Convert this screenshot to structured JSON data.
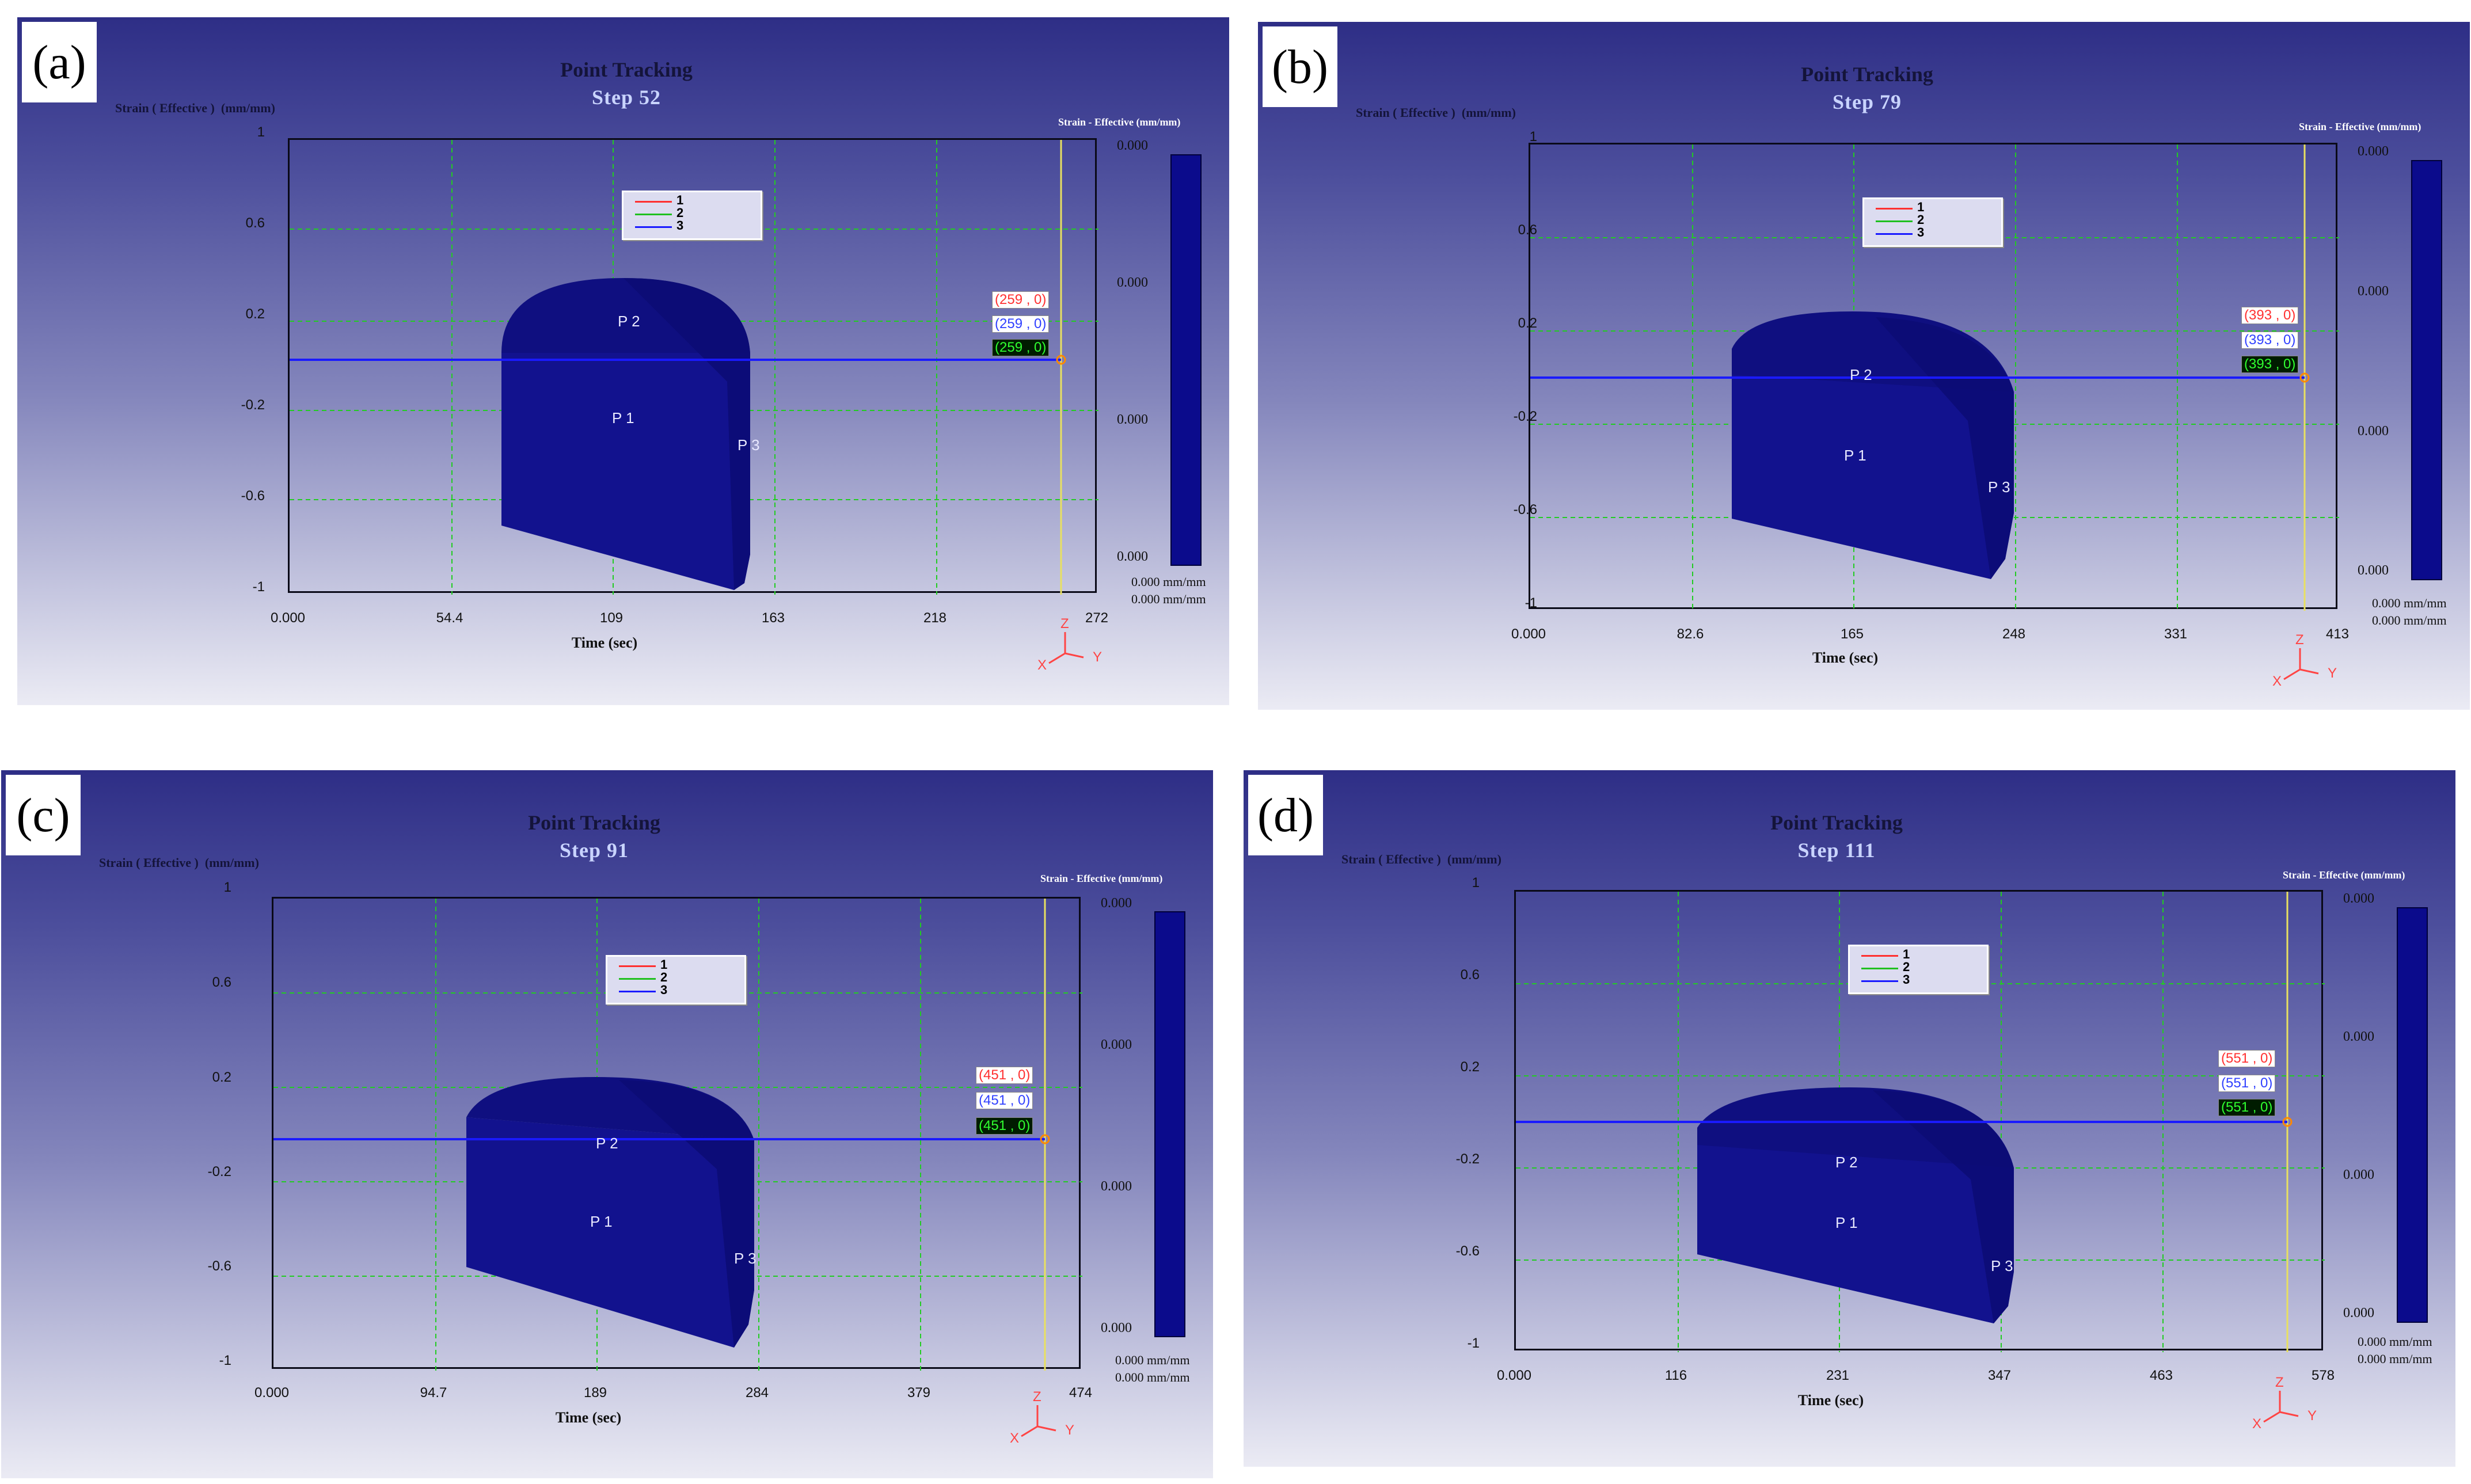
{
  "figure": {
    "panels": [
      {
        "letter": "(a)",
        "title": "Point Tracking",
        "step": "Step   52",
        "y_axis_label": "Strain ( Effective )  (mm/mm)",
        "colorbar_title": "Strain - Effective (mm/mm)",
        "y_ticks": [
          "1",
          "0.6",
          "0.2",
          "-0.2",
          "-0.6",
          "-1"
        ],
        "x_ticks": [
          "0.000",
          "54.4",
          "109",
          "163",
          "218",
          "272"
        ],
        "x_axis_label": "Time (sec)",
        "legend": [
          "1",
          "2",
          "3"
        ],
        "value_tags": [
          "(259 , 0)",
          "(259 , 0)",
          "(259 , 0)"
        ],
        "point_labels": [
          "P 2",
          "P 1",
          "P 3"
        ],
        "colorbar_values": [
          "0.000",
          "0.000",
          "0.000",
          "0.000"
        ],
        "colorbar_units": [
          "0.000 mm/mm",
          "0.000 mm/mm"
        ],
        "axis_indicator": {
          "z": "Z",
          "x": "X",
          "y": "Y"
        }
      },
      {
        "letter": "(b)",
        "title": "Point Tracking",
        "step": "Step   79",
        "y_axis_label": "Strain ( Effective )  (mm/mm)",
        "colorbar_title": "Strain - Effective (mm/mm)",
        "y_ticks": [
          "1",
          "0.6",
          "0.2",
          "-0.2",
          "-0.6",
          "-1"
        ],
        "x_ticks": [
          "0.000",
          "82.6",
          "165",
          "248",
          "331",
          "413"
        ],
        "x_axis_label": "Time (sec)",
        "legend": [
          "1",
          "2",
          "3"
        ],
        "value_tags": [
          "(393 , 0)",
          "(393 , 0)",
          "(393 , 0)"
        ],
        "point_labels": [
          "P 2",
          "P 1",
          "P 3"
        ],
        "colorbar_values": [
          "0.000",
          "0.000",
          "0.000",
          "0.000"
        ],
        "colorbar_units": [
          "0.000 mm/mm",
          "0.000 mm/mm"
        ],
        "axis_indicator": {
          "z": "Z",
          "x": "X",
          "y": "Y"
        }
      },
      {
        "letter": "(c)",
        "title": "Point Tracking",
        "step": "Step   91",
        "y_axis_label": "Strain ( Effective )  (mm/mm)",
        "colorbar_title": "Strain - Effective (mm/mm)",
        "y_ticks": [
          "1",
          "0.6",
          "0.2",
          "-0.2",
          "-0.6",
          "-1"
        ],
        "x_ticks": [
          "0.000",
          "94.7",
          "189",
          "284",
          "379",
          "474"
        ],
        "x_axis_label": "Time (sec)",
        "legend": [
          "1",
          "2",
          "3"
        ],
        "value_tags": [
          "(451 , 0)",
          "(451 , 0)",
          "(451 , 0)"
        ],
        "point_labels": [
          "P 2",
          "P 1",
          "P 3"
        ],
        "colorbar_values": [
          "0.000",
          "0.000",
          "0.000",
          "0.000"
        ],
        "colorbar_units": [
          "0.000 mm/mm",
          "0.000 mm/mm"
        ],
        "axis_indicator": {
          "z": "Z",
          "x": "X",
          "y": "Y"
        }
      },
      {
        "letter": "(d)",
        "title": "Point Tracking",
        "step": "Step  111",
        "y_axis_label": "Strain ( Effective )  (mm/mm)",
        "colorbar_title": "Strain - Effective (mm/mm)",
        "y_ticks": [
          "1",
          "0.6",
          "0.2",
          "-0.2",
          "-0.6",
          "-1"
        ],
        "x_ticks": [
          "0.000",
          "116",
          "231",
          "347",
          "463",
          "578"
        ],
        "x_axis_label": "Time (sec)",
        "legend": [
          "1",
          "2",
          "3"
        ],
        "value_tags": [
          "(551 , 0)",
          "(551 , 0)",
          "(551 , 0)"
        ],
        "point_labels": [
          "P 2",
          "P 1",
          "P 3"
        ],
        "colorbar_values": [
          "0.000",
          "0.000",
          "0.000",
          "0.000"
        ],
        "colorbar_units": [
          "0.000 mm/mm",
          "0.000 mm/mm"
        ],
        "axis_indicator": {
          "z": "Z",
          "x": "X",
          "y": "Y"
        }
      }
    ],
    "colors": {
      "series_1": "#ff3030",
      "series_2": "#20c020",
      "series_3": "#1a1aff",
      "workpiece": "#10108a",
      "grid": "#22cc22",
      "time_marker": "#e8e060"
    }
  }
}
